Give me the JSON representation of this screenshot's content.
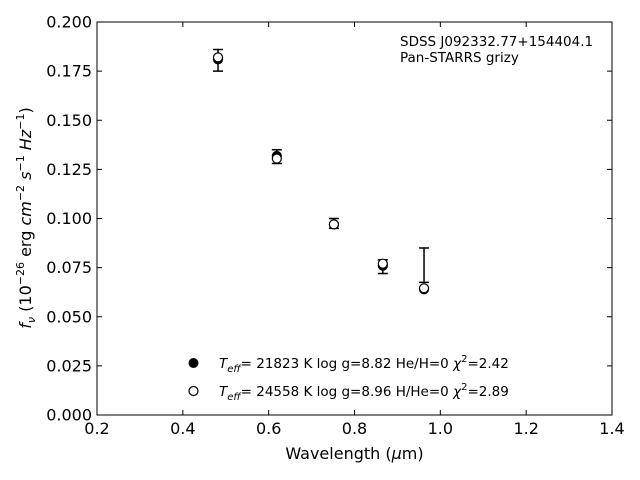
{
  "chart_data": {
    "type": "scatter",
    "annotation": [
      "SDSS J092332.77+154404.1",
      "Pan-STARRS grizy"
    ],
    "xlabel": "Wavelength (μm)",
    "ylabel": "fν (10⁻²⁶ erg cm⁻² s⁻¹ Hz⁻¹)",
    "xlim": [
      0.2,
      1.4
    ],
    "ylim": [
      0.0,
      0.2
    ],
    "x_ticks": [
      "0.2",
      "0.4",
      "0.6",
      "0.8",
      "1.0",
      "1.2",
      "1.4"
    ],
    "y_ticks": [
      "0.000",
      "0.025",
      "0.050",
      "0.075",
      "0.100",
      "0.125",
      "0.150",
      "0.175",
      "0.200"
    ],
    "grid": false,
    "legend_position": "bottom-center",
    "observed": {
      "x": [
        0.482,
        0.619,
        0.752,
        0.866,
        0.962
      ],
      "y": [
        0.1805,
        0.1315,
        0.0975,
        0.0755,
        0.076
      ],
      "err_low": [
        0.0055,
        0.0035,
        0.0025,
        0.0035,
        0.0085
      ],
      "err_high": [
        0.0055,
        0.0035,
        0.0025,
        0.0035,
        0.009
      ]
    },
    "series": [
      {
        "legend": "T_eff= 21823 K  log g=8.82  He/H=0  χ²=2.42",
        "marker": "filled-circle",
        "x": [
          0.482,
          0.619,
          0.752,
          0.866,
          0.962
        ],
        "y": [
          0.181,
          0.1318,
          0.097,
          0.076,
          0.064
        ]
      },
      {
        "legend": "T_eff= 24558 K  log g=8.96  H/He=0  χ²=2.89",
        "marker": "open-circle",
        "x": [
          0.482,
          0.619,
          0.752,
          0.866,
          0.962
        ],
        "y": [
          0.182,
          0.1305,
          0.097,
          0.077,
          0.0645
        ]
      }
    ],
    "colors": {
      "marker": "#000000",
      "axes": "#000000",
      "background": "#ffffff"
    }
  }
}
